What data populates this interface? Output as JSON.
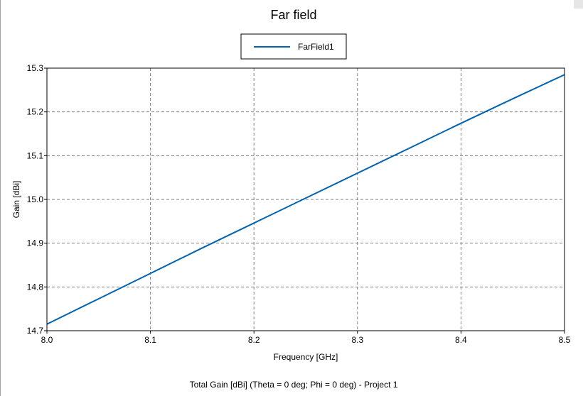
{
  "chart_data": {
    "type": "line",
    "title": "Far field",
    "xlabel": "Frequency [GHz]",
    "ylabel": "Gain [dBi]",
    "caption": "Total Gain [dBi] (Theta = 0 deg; Phi = 0 deg) - Project 1",
    "xlim": [
      8.0,
      8.5
    ],
    "ylim": [
      14.7,
      15.3
    ],
    "xticks": [
      "8.0",
      "8.1",
      "8.2",
      "8.3",
      "8.4",
      "8.5"
    ],
    "yticks": [
      "15.3",
      "15.2",
      "15.1",
      "15.0",
      "14.9",
      "14.8",
      "14.7"
    ],
    "grid": true,
    "legend_position": "top-center",
    "series": [
      {
        "name": "FarField1",
        "color": "#0063b1",
        "x": [
          8.0,
          8.05,
          8.1,
          8.15,
          8.2,
          8.25,
          8.3,
          8.35,
          8.4,
          8.45,
          8.5
        ],
        "y": [
          14.715,
          14.773,
          14.831,
          14.889,
          14.946,
          15.003,
          15.06,
          15.117,
          15.174,
          15.23,
          15.285
        ]
      }
    ]
  }
}
